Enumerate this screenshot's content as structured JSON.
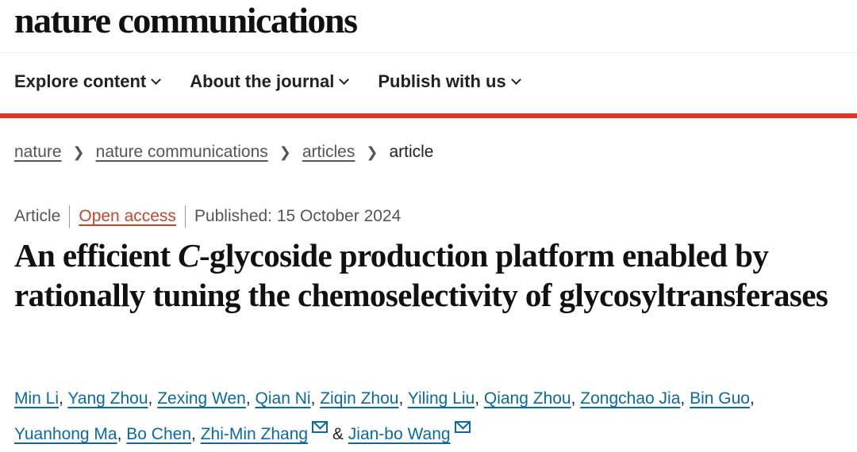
{
  "logo": "nature communications",
  "nav": [
    {
      "label": "Explore content"
    },
    {
      "label": "About the journal"
    },
    {
      "label": "Publish with us"
    }
  ],
  "breadcrumb": [
    "nature",
    "nature communications",
    "articles",
    "article"
  ],
  "meta": {
    "type": "Article",
    "access": "Open access",
    "published": "Published: 15 October 2024"
  },
  "title": {
    "pre": "An efficient ",
    "italic": "C",
    "post": "-glycoside production platform enabled by rationally tuning the chemoselectivity of glycosyltransferases"
  },
  "authors": [
    "Min Li",
    "Yang Zhou",
    "Zexing Wen",
    "Qian Ni",
    "Ziqin Zhou",
    "Yiling Liu",
    "Qiang Zhou",
    "Zongchao Jia",
    "Bin Guo",
    "Yuanhong Ma",
    "Bo Chen",
    "Zhi-Min Zhang",
    "Jian-bo Wang"
  ],
  "amp": "&",
  "colors": {
    "accent_red": "#e33326",
    "link": "#0a6aa1",
    "open_access": "#c4462a"
  }
}
